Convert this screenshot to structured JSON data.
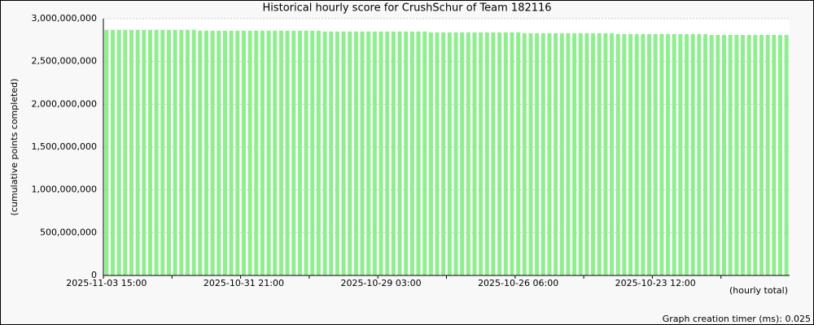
{
  "chart_data": {
    "type": "bar",
    "title": "Historical hourly score for CrushSchur of Team 182116",
    "y_label": "(cumulative points completed)",
    "x_label": "(hourly total)",
    "footer": "Graph creation timer (ms): 0.025",
    "color": "#90ee90",
    "grid": true,
    "categories": [
      "2025-11-03 15:00",
      null,
      null,
      null,
      null,
      null,
      null,
      null,
      null,
      null,
      null,
      null,
      null,
      null,
      null,
      null,
      null,
      null,
      null,
      null,
      null,
      null,
      "2025-10-31 21:00",
      null,
      null,
      null,
      null,
      null,
      null,
      null,
      null,
      null,
      null,
      null,
      null,
      null,
      null,
      null,
      null,
      null,
      null,
      null,
      null,
      null,
      "2025-10-29 03:00",
      null,
      null,
      null,
      null,
      null,
      null,
      null,
      null,
      null,
      null,
      null,
      null,
      null,
      null,
      null,
      null,
      null,
      null,
      null,
      null,
      null,
      "2025-10-26 06:00",
      null,
      null,
      null,
      null,
      null,
      null,
      null,
      null,
      null,
      null,
      null,
      null,
      null,
      null,
      null,
      null,
      null,
      null,
      null,
      null,
      null,
      "2025-10-23 12:00",
      null,
      null,
      null,
      null,
      null,
      null,
      null,
      null,
      null,
      null,
      null,
      null,
      null,
      null,
      null,
      null,
      null,
      null,
      null,
      null,
      null
    ],
    "values": [
      2870000000,
      2870000000,
      2870000000,
      2870000000,
      2870000000,
      2870000000,
      2870000000,
      2870000000,
      2870000000,
      2870000000,
      2870000000,
      2870000000,
      2870000000,
      2870000000,
      2870000000,
      2860000000,
      2860000000,
      2860000000,
      2860000000,
      2860000000,
      2860000000,
      2860000000,
      2860000000,
      2860000000,
      2860000000,
      2860000000,
      2860000000,
      2860000000,
      2860000000,
      2860000000,
      2860000000,
      2860000000,
      2860000000,
      2860000000,
      2860000000,
      2850000000,
      2850000000,
      2850000000,
      2850000000,
      2850000000,
      2850000000,
      2850000000,
      2850000000,
      2850000000,
      2850000000,
      2850000000,
      2850000000,
      2850000000,
      2850000000,
      2850000000,
      2850000000,
      2850000000,
      2840000000,
      2840000000,
      2840000000,
      2840000000,
      2840000000,
      2840000000,
      2840000000,
      2840000000,
      2840000000,
      2840000000,
      2840000000,
      2840000000,
      2840000000,
      2840000000,
      2840000000,
      2830000000,
      2830000000,
      2830000000,
      2830000000,
      2830000000,
      2830000000,
      2830000000,
      2830000000,
      2830000000,
      2830000000,
      2830000000,
      2830000000,
      2830000000,
      2830000000,
      2830000000,
      2820000000,
      2820000000,
      2820000000,
      2820000000,
      2820000000,
      2820000000,
      2820000000,
      2820000000,
      2820000000,
      2820000000,
      2820000000,
      2820000000,
      2820000000,
      2820000000,
      2820000000,
      2810000000,
      2810000000,
      2810000000,
      2810000000,
      2810000000,
      2810000000,
      2810000000,
      2810000000,
      2810000000,
      2810000000,
      2810000000,
      2810000000,
      2810000000
    ],
    "ylim": [
      0,
      3000000000
    ],
    "yticks": [
      0,
      {
        "value": 500000000,
        "label": "500,000,000"
      },
      {
        "value": 1000000000,
        "label": "1,000,000,000"
      },
      {
        "value": 1500000000,
        "label": "1,500,000,000"
      },
      {
        "value": 2000000000,
        "label": "2,000,000,000"
      },
      {
        "value": 2500000000,
        "label": "2,500,000,000"
      },
      {
        "value": 3000000000,
        "label": "3,000,000,000"
      }
    ]
  }
}
